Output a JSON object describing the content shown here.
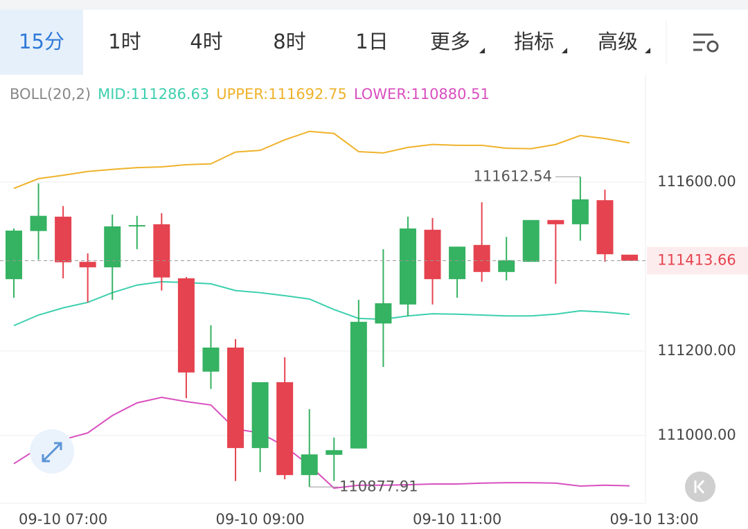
{
  "tabs": [
    "15分",
    "1时",
    "4时",
    "8时",
    "1日",
    "更多",
    "指标",
    "高级"
  ],
  "chart_data": {
    "type": "candlestick",
    "indicator": "BOLL(20,2)",
    "categories": [
      null,
      null,
      "09-10 07:00",
      null,
      null,
      null,
      null,
      null,
      null,
      null,
      "09-10 09:00",
      null,
      null,
      null,
      null,
      null,
      null,
      null,
      "09-10 11:00",
      null,
      null,
      null,
      null,
      null,
      null,
      null,
      "09-10 13:00"
    ],
    "open": [
      111370,
      111484,
      111518,
      111411,
      111398,
      111495,
      111500,
      111372,
      111151,
      111208,
      110970,
      111126,
      110906,
      110954,
      110969,
      111265,
      111310,
      111487,
      111370,
      111451,
      111387,
      111411,
      111510,
      111500,
      111557,
      111428,
      null
    ],
    "high": [
      111490,
      111597,
      111543,
      111431,
      111523,
      111520,
      111526,
      111375,
      111261,
      111228,
      111126,
      111185,
      111062,
      110995,
      111321,
      111441,
      111518,
      111515,
      111447,
      111552,
      111470,
      111510,
      111510,
      111612.54,
      111582,
      111428,
      null
    ],
    "low": [
      111326,
      111416,
      111372,
      111315,
      111321,
      111441,
      111343,
      111088,
      111110,
      110892,
      110913,
      110896,
      110877.91,
      110892,
      110969,
      111162,
      111282,
      111310,
      111326,
      111364,
      111367,
      111411,
      111359,
      111461,
      111411,
      111413.66,
      null
    ],
    "close": [
      111485,
      111520,
      111410,
      111398,
      111495,
      111498,
      111374,
      111149,
      111208,
      110970,
      111126,
      110906,
      110955,
      110965,
      111269,
      111313,
      111490,
      111370,
      111447,
      111387,
      111415,
      111510,
      111500,
      111559,
      111429,
      111413.66,
      null
    ],
    "up_color": "#35b262",
    "down_color": "#e5434f",
    "series": [
      {
        "name": "MID:111286.63",
        "color": "#3ccfae",
        "values": [
          111260,
          111285,
          111302,
          111315,
          111338,
          111356,
          111364,
          111362,
          111359,
          111343,
          111338,
          111331,
          111323,
          111298,
          111277,
          111275,
          111283,
          111288,
          111287,
          111285,
          111283,
          111283,
          111287,
          111295,
          111292,
          111286.63,
          null
        ]
      },
      {
        "name": "UPPER:111692.75",
        "color": "#efb22a",
        "values": [
          111585,
          111608,
          111616,
          111625,
          111630,
          111634,
          111636,
          111641,
          111643,
          111671,
          111675,
          111700,
          111720,
          111715,
          111672,
          111669,
          111682,
          111689,
          111687,
          111687,
          111680,
          111679,
          111689,
          111710,
          111703,
          111692.75,
          null
        ]
      },
      {
        "name": "LOWER:110880.51",
        "color": "#d94fbf",
        "values": [
          110933,
          110970,
          110990,
          111006,
          111047,
          111077,
          111090,
          111080,
          111072,
          111015,
          111006,
          110974,
          110929,
          110875,
          110882,
          110882,
          110883,
          110885,
          110885,
          110887,
          110888,
          110888,
          110887,
          110880,
          110882,
          110880.51,
          null
        ]
      }
    ],
    "ylim": [
      110839,
      111854
    ],
    "yticks": [
      {
        "value": 111000,
        "label": "111000.00"
      },
      {
        "value": 111200,
        "label": "111200.00"
      },
      {
        "value": 111600,
        "label": "111600.00"
      }
    ],
    "grid": true
  }
}
